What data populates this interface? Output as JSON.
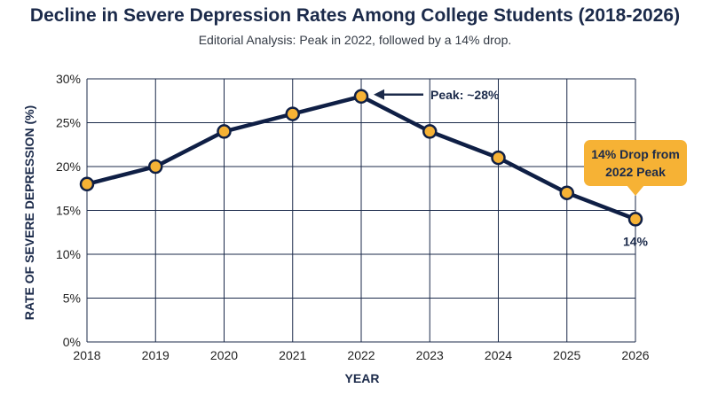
{
  "title": "Decline in Severe Depression Rates Among College Students (2018-2026)",
  "subtitle": "Editorial Analysis: Peak in 2022, followed by a 14% drop.",
  "chart_data": {
    "type": "line",
    "title": "Decline in Severe Depression Rates Among College Students (2018-2026)",
    "subtitle": "Editorial Analysis: Peak in 2022, followed by a 14% drop.",
    "xlabel": "YEAR",
    "ylabel": "RATE OF SEVERE DEPRESSION (%)",
    "x": [
      2018,
      2019,
      2020,
      2021,
      2022,
      2023,
      2024,
      2025,
      2026
    ],
    "values": [
      18,
      20,
      24,
      26,
      28,
      24,
      21,
      17,
      14
    ],
    "ylim": [
      0,
      30
    ],
    "yticks": [
      0,
      5,
      10,
      15,
      20,
      25,
      30
    ],
    "ytick_labels": [
      "0%",
      "5%",
      "10%",
      "15%",
      "20%",
      "25%",
      "30%"
    ],
    "grid": true,
    "line_color": "#0f1f45",
    "marker_color": "#f6b235",
    "annotations": {
      "peak_label": "Peak: ~28%",
      "callout_line1": "14% Drop from",
      "callout_line2": "2022 Peak",
      "end_label": "14%"
    }
  }
}
